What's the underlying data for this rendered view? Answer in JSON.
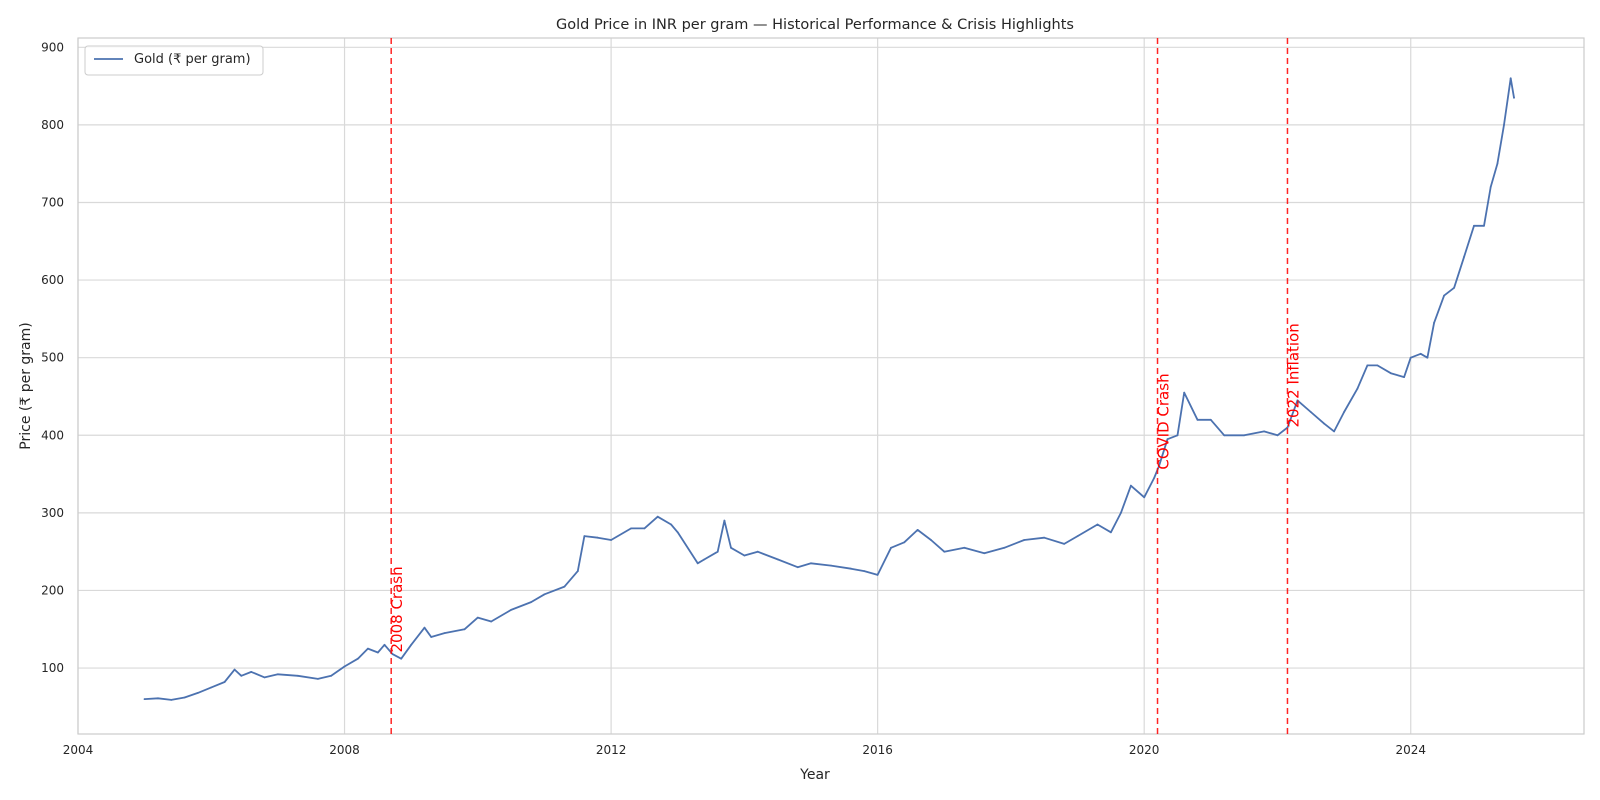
{
  "chart_data": {
    "type": "line",
    "title": "Gold Price in INR per gram — Historical Performance & Crisis Highlights",
    "xlabel": "Year",
    "ylabel": "Price (₹ per gram)",
    "xlim": [
      2004.0,
      2026.6
    ],
    "ylim": [
      15,
      912
    ],
    "x_ticks": [
      2004,
      2008,
      2012,
      2016,
      2020,
      2024
    ],
    "x_tick_labels": [
      "2004",
      "2008",
      "2012",
      "2016",
      "2020",
      "2024"
    ],
    "y_ticks": [
      100,
      200,
      300,
      400,
      500,
      600,
      700,
      800,
      900
    ],
    "y_tick_labels": [
      "100",
      "200",
      "300",
      "400",
      "500",
      "600",
      "700",
      "800",
      "900"
    ],
    "grid": true,
    "legend_position": "top-left",
    "series": [
      {
        "name": "Gold (₹ per gram)",
        "color": "#4c72b0",
        "x": [
          2005.0,
          2005.2,
          2005.4,
          2005.6,
          2005.8,
          2006.0,
          2006.2,
          2006.35,
          2006.45,
          2006.6,
          2006.8,
          2007.0,
          2007.3,
          2007.6,
          2007.8,
          2008.0,
          2008.2,
          2008.35,
          2008.5,
          2008.6,
          2008.72,
          2008.85,
          2009.0,
          2009.2,
          2009.3,
          2009.5,
          2009.8,
          2010.0,
          2010.2,
          2010.5,
          2010.8,
          2011.0,
          2011.3,
          2011.5,
          2011.6,
          2011.8,
          2012.0,
          2012.3,
          2012.5,
          2012.7,
          2012.9,
          2013.0,
          2013.3,
          2013.4,
          2013.6,
          2013.7,
          2013.8,
          2014.0,
          2014.2,
          2014.5,
          2014.8,
          2015.0,
          2015.3,
          2015.6,
          2015.8,
          2016.0,
          2016.2,
          2016.4,
          2016.6,
          2016.8,
          2017.0,
          2017.3,
          2017.6,
          2017.9,
          2018.2,
          2018.5,
          2018.8,
          2019.0,
          2019.3,
          2019.5,
          2019.65,
          2019.8,
          2020.0,
          2020.15,
          2020.22,
          2020.35,
          2020.5,
          2020.6,
          2020.8,
          2021.0,
          2021.2,
          2021.5,
          2021.8,
          2022.0,
          2022.15,
          2022.3,
          2022.5,
          2022.7,
          2022.85,
          2023.0,
          2023.2,
          2023.35,
          2023.5,
          2023.7,
          2023.9,
          2024.0,
          2024.15,
          2024.25,
          2024.35,
          2024.5,
          2024.65,
          2024.8,
          2024.95,
          2025.1,
          2025.2,
          2025.3,
          2025.4,
          2025.5,
          2025.55
        ],
        "values": [
          60,
          61,
          59,
          62,
          68,
          75,
          82,
          98,
          90,
          95,
          88,
          92,
          90,
          86,
          90,
          102,
          112,
          125,
          120,
          130,
          118,
          112,
          130,
          152,
          140,
          145,
          150,
          165,
          160,
          175,
          185,
          195,
          205,
          225,
          270,
          268,
          265,
          280,
          280,
          295,
          285,
          275,
          235,
          240,
          250,
          290,
          255,
          245,
          250,
          240,
          230,
          235,
          232,
          228,
          225,
          220,
          255,
          262,
          278,
          265,
          250,
          255,
          248,
          255,
          265,
          268,
          260,
          270,
          285,
          275,
          300,
          335,
          320,
          345,
          360,
          395,
          400,
          455,
          420,
          420,
          400,
          400,
          405,
          400,
          410,
          445,
          430,
          415,
          405,
          430,
          460,
          490,
          490,
          480,
          475,
          500,
          505,
          500,
          545,
          580,
          590,
          630,
          670,
          670,
          720,
          750,
          800,
          860,
          835
        ]
      }
    ],
    "annotations": [
      {
        "x": 2008.7,
        "label": "2008 Crash",
        "color": "#ff0000"
      },
      {
        "x": 2020.2,
        "label": "COVID Crash",
        "color": "#ff0000"
      },
      {
        "x": 2022.15,
        "label": "2022 Inflation",
        "color": "#ff0000"
      }
    ]
  }
}
